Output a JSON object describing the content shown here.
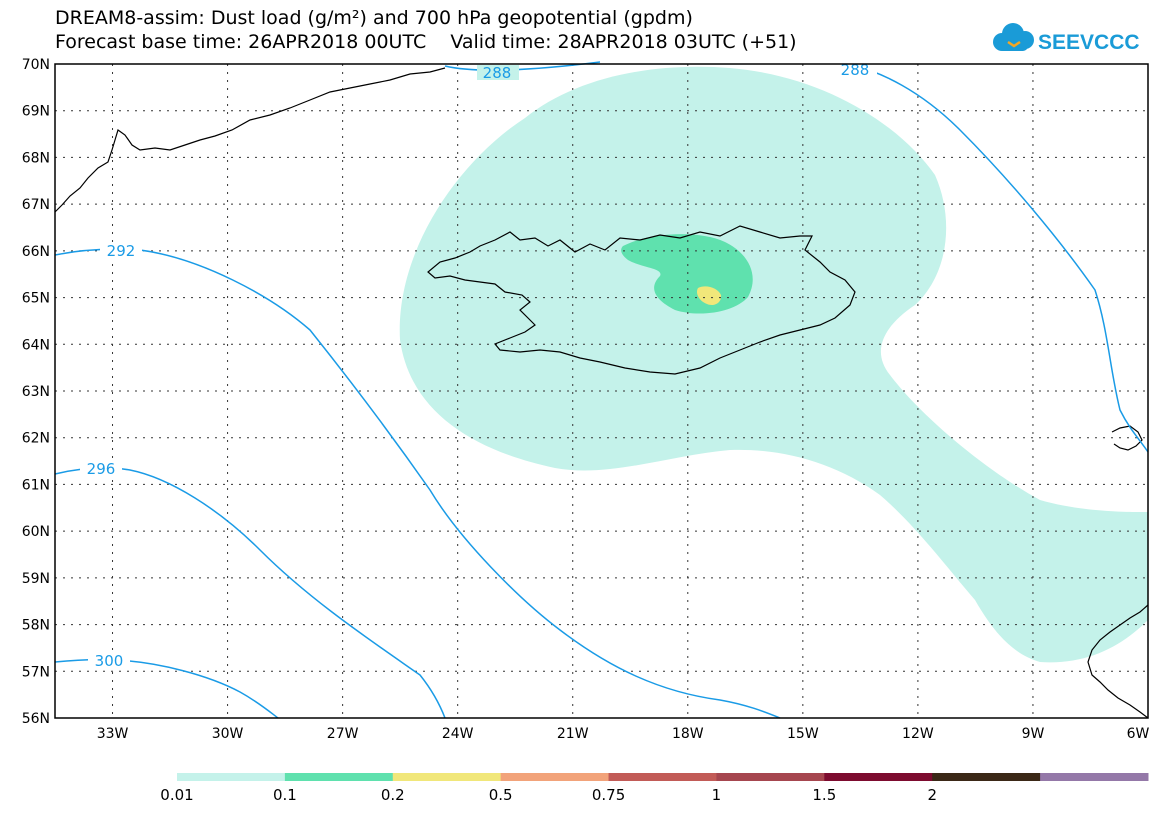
{
  "header": {
    "title": "DREAM8-assim: Dust load (g/m²) and 700 hPa geopotential (gpdm)",
    "forecast_line": "Forecast base time: 26APR2018 00UTC    Valid time: 28APR2018 03UTC (+51)"
  },
  "logo": {
    "text": "SEEVCCC",
    "icon": "cloud-icon",
    "color": "#1a9bd7"
  },
  "map": {
    "lon_range": [
      -34.5,
      -6
    ],
    "lat_range": [
      56,
      70
    ],
    "lat_labels": [
      "70N",
      "69N",
      "68N",
      "67N",
      "66N",
      "65N",
      "64N",
      "63N",
      "62N",
      "61N",
      "60N",
      "59N",
      "58N",
      "57N",
      "56N"
    ],
    "lon_labels": [
      "33W",
      "30W",
      "27W",
      "24W",
      "21W",
      "18W",
      "15W",
      "12W",
      "9W",
      "6W"
    ],
    "contour_color": "#1a9be6",
    "contour_labels": [
      "288",
      "288",
      "292",
      "296",
      "300"
    ]
  },
  "colorbar": {
    "colors": [
      "#c4f2ea",
      "#5fe1ae",
      "#f1e77a",
      "#f2a37a",
      "#c25b57",
      "#a6464f",
      "#7d0b2f",
      "#3b2817",
      "#9478a8"
    ],
    "labels": [
      "0.01",
      "0.1",
      "0.2",
      "0.5",
      "0.75",
      "1",
      "1.5",
      "2"
    ]
  }
}
